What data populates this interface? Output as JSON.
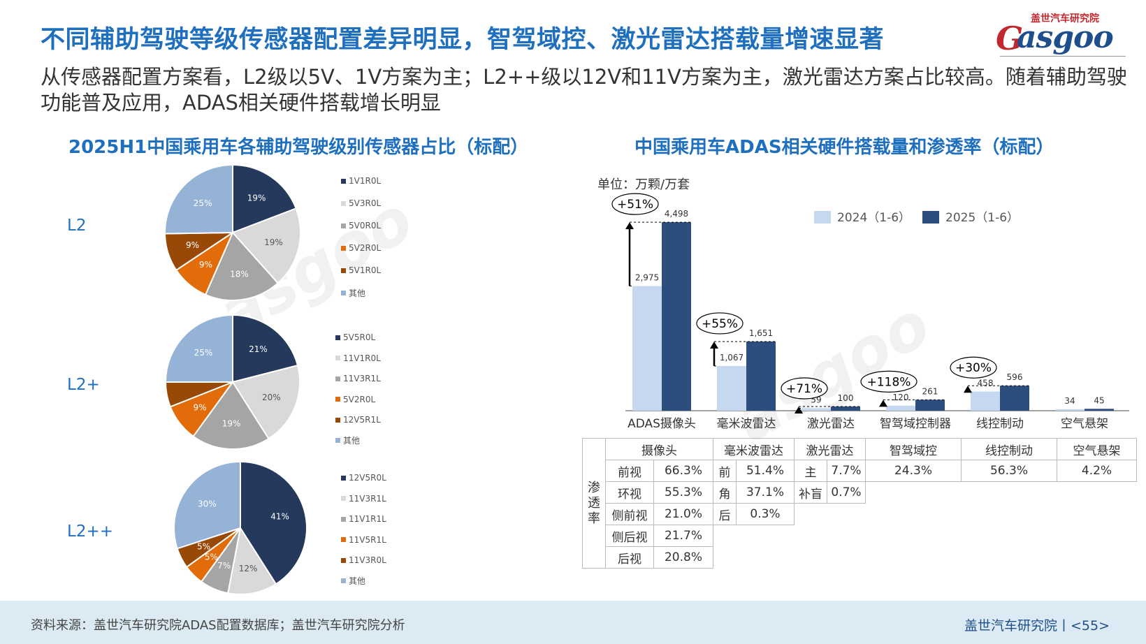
{
  "title": "不同辅助驾驶等级传感器配置差异明显，智驾域控、激光雷达搭载量增速显著",
  "subtitle": "从传感器配置方案看，L2级以5V、1V方案为主；L2++级以12V和11V方案为主，激光雷达方案占比较高。随着辅助驾驶功能普及应用，ADAS相关硬件搭载增长明显",
  "logo": {
    "top": "盖世汽车研究院",
    "word": "asgoo",
    "g": "G"
  },
  "colors": {
    "title": "#1f6fbf",
    "accent_red": "#c0282e",
    "dark_blue": "#2b4e7e",
    "light_blue": "#c6d8ef"
  },
  "chart_data": [
    {
      "type": "pie",
      "title": "2025H1中国乘用车各辅助驾驶级别传感器占比（标配）",
      "pies": [
        {
          "label": "L2",
          "slices": [
            {
              "name": "1V1R0L",
              "value": 19,
              "label": "19%",
              "color": "#24395c"
            },
            {
              "name": "5V3R0L",
              "value": 19,
              "label": "19%",
              "color": "#d9d9d9"
            },
            {
              "name": "5V0R0L",
              "value": 18,
              "label": "18%",
              "color": "#a5a5a5"
            },
            {
              "name": "5V2R0L",
              "value": 9,
              "label": "9%",
              "color": "#e36c0a"
            },
            {
              "name": "5V1R0L",
              "value": 9,
              "label": "9%",
              "color": "#984807"
            },
            {
              "name": "其他",
              "value": 25,
              "label": "25%",
              "color": "#95b3d7"
            }
          ]
        },
        {
          "label": "L2+",
          "slices": [
            {
              "name": "5V5R0L",
              "value": 21,
              "label": "21%",
              "color": "#24395c"
            },
            {
              "name": "11V1R0L",
              "value": 20,
              "label": "20%",
              "color": "#d9d9d9"
            },
            {
              "name": "11V3R1L",
              "value": 19,
              "label": "19%",
              "color": "#a5a5a5"
            },
            {
              "name": "5V2R0L",
              "value": 9,
              "label": "9%",
              "color": "#e36c0a"
            },
            {
              "name": "12V5R1L",
              "value": 6,
              "label": "",
              "color": "#984807"
            },
            {
              "name": "其他",
              "value": 25,
              "label": "25%",
              "color": "#95b3d7"
            }
          ]
        },
        {
          "label": "L2++",
          "slices": [
            {
              "name": "12V5R0L",
              "value": 41,
              "label": "41%",
              "color": "#24395c"
            },
            {
              "name": "11V3R1L",
              "value": 12,
              "label": "12%",
              "color": "#d9d9d9"
            },
            {
              "name": "11V1R1L",
              "value": 7,
              "label": "7%",
              "color": "#a5a5a5"
            },
            {
              "name": "11V5R1L",
              "value": 5,
              "label": "5%",
              "color": "#e36c0a"
            },
            {
              "name": "11V3R0L",
              "value": 5,
              "label": "5%",
              "color": "#984807"
            },
            {
              "name": "其他",
              "value": 30,
              "label": "30%",
              "color": "#95b3d7"
            }
          ]
        }
      ]
    },
    {
      "type": "bar",
      "title": "中国乘用车ADAS相关硬件搭载量和渗透率（标配）",
      "unit": "单位：万颗/万套",
      "categories": [
        "ADAS摄像头",
        "毫米波雷达",
        "激光雷达",
        "智驾域控制器",
        "线控制动",
        "空气悬架"
      ],
      "series": [
        {
          "name": "2024（1-6）",
          "color": "#c6d8ef",
          "values": [
            2975,
            1067,
            59,
            120,
            458,
            34
          ],
          "labels": [
            "2,975",
            "1,067",
            "59",
            "120",
            "458",
            "34"
          ]
        },
        {
          "name": "2025（1-6）",
          "color": "#2b4e7e",
          "values": [
            4498,
            1651,
            100,
            261,
            596,
            45
          ],
          "labels": [
            "4,498",
            "1,651",
            "100",
            "261",
            "596",
            "45"
          ]
        }
      ],
      "growth": [
        "+51%",
        "+55%",
        "+71%",
        "+118%",
        "+30%",
        ""
      ],
      "ylim": [
        0,
        4800
      ]
    }
  ],
  "penetration": {
    "side_label": "渗透率",
    "headers": [
      "摄像头",
      "毫米波雷达",
      "激光雷达",
      "智驾域控",
      "线控制动",
      "空气悬架"
    ],
    "camera": [
      [
        "前视",
        "66.3%"
      ],
      [
        "环视",
        "55.3%"
      ],
      [
        "侧前视",
        "21.0%"
      ],
      [
        "侧后视",
        "21.7%"
      ],
      [
        "后视",
        "20.8%"
      ]
    ],
    "radar": [
      [
        "前",
        "51.4%"
      ],
      [
        "角",
        "37.1%"
      ],
      [
        "后",
        "0.3%"
      ]
    ],
    "lidar": [
      [
        "主",
        "7.7%"
      ],
      [
        "补盲",
        "0.7%"
      ]
    ],
    "domain": "24.3%",
    "brake": "56.3%",
    "suspension": "4.2%"
  },
  "footer": {
    "source": "资料来源：盖世汽车研究院ADAS配置数据库；盖世汽车研究院分析",
    "brand": "盖世汽车研究院丨<55>"
  }
}
